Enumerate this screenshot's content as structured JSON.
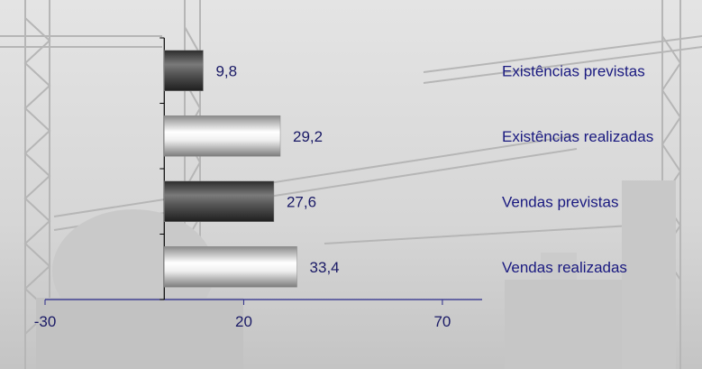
{
  "chart_data": {
    "type": "bar",
    "orientation": "horizontal",
    "categories": [
      "Existências previstas",
      "Existências realizadas",
      "Vendas previstas",
      "Vendas realizadas"
    ],
    "values": [
      9.8,
      29.2,
      27.6,
      33.4
    ],
    "value_labels": [
      "9,8",
      "29,2",
      "27,6",
      "33,4"
    ],
    "bar_styles": [
      "dark",
      "light",
      "dark",
      "light"
    ],
    "xlim": [
      -30,
      80
    ],
    "xticks": [
      -30,
      20,
      70
    ],
    "xtick_labels": [
      "-30",
      "20",
      "70"
    ],
    "title": "",
    "xlabel": "",
    "ylabel": "",
    "grid": false,
    "colors": {
      "axis": "#2a2a8a",
      "text": "#1a1a66",
      "dark_bar": "#3c3c3c",
      "light_bar": "#f4f4f4"
    }
  }
}
